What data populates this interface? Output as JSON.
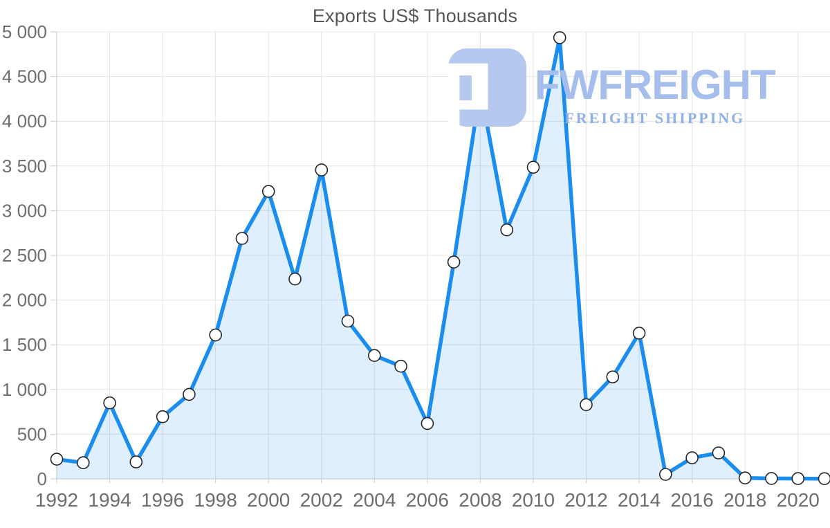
{
  "page": {
    "title": "Exports US$ Thousands"
  },
  "watermark": {
    "brand": "FWFREIGHT",
    "tagline": "FREIGHT SHIPPING",
    "brand_color": "#a6beec",
    "tagline_color": "#8fb1e8",
    "icon_color": "#b5c8f0"
  },
  "chart_data": {
    "type": "area",
    "title": "Exports US$ Thousands",
    "xlabel": "",
    "ylabel": "",
    "x": [
      1992,
      1993,
      1994,
      1995,
      1996,
      1997,
      1998,
      1999,
      2000,
      2001,
      2002,
      2003,
      2004,
      2005,
      2006,
      2007,
      2008,
      2009,
      2010,
      2011,
      2012,
      2013,
      2014,
      2015,
      2016,
      2017,
      2018,
      2019,
      2020,
      2021
    ],
    "series": [
      {
        "name": "Exports US$ Thousands",
        "values": [
          220,
          180,
          850,
          190,
          695,
          945,
          1610,
          2690,
          3215,
          2235,
          3455,
          1765,
          1380,
          1260,
          620,
          2425,
          4365,
          2785,
          3485,
          4935,
          830,
          1140,
          1630,
          50,
          235,
          290,
          10,
          5,
          3,
          2
        ]
      }
    ],
    "x_tick_labels": [
      "1992",
      "1994",
      "1996",
      "1998",
      "2000",
      "2002",
      "2004",
      "2006",
      "2008",
      "2010",
      "2012",
      "2014",
      "2016",
      "2018",
      "2020"
    ],
    "x_tick_years": [
      1992,
      1994,
      1996,
      1998,
      2000,
      2002,
      2004,
      2006,
      2008,
      2010,
      2012,
      2014,
      2016,
      2018,
      2020
    ],
    "y_tick_values": [
      0,
      500,
      1000,
      1500,
      2000,
      2500,
      3000,
      3500,
      4000,
      4500,
      5000
    ],
    "y_tick_labels": [
      "0",
      "500",
      "1 000",
      "1 500",
      "2 000",
      "2 500",
      "3 000",
      "3 500",
      "4 000",
      "4 500",
      "5 000"
    ],
    "xlim": [
      1992,
      2021
    ],
    "ylim": [
      0,
      5000
    ],
    "grid": true,
    "legend": "none",
    "markers": true,
    "colors": {
      "line": "#1b8def",
      "fill": "rgba(27,141,239,0.14)",
      "marker_fill": "#ffffff",
      "marker_border": "#262626",
      "grid": "#e4e4e4",
      "axis": "#c9c9c9",
      "tick_text": "#6e6e6e",
      "title_text": "#565656"
    }
  }
}
